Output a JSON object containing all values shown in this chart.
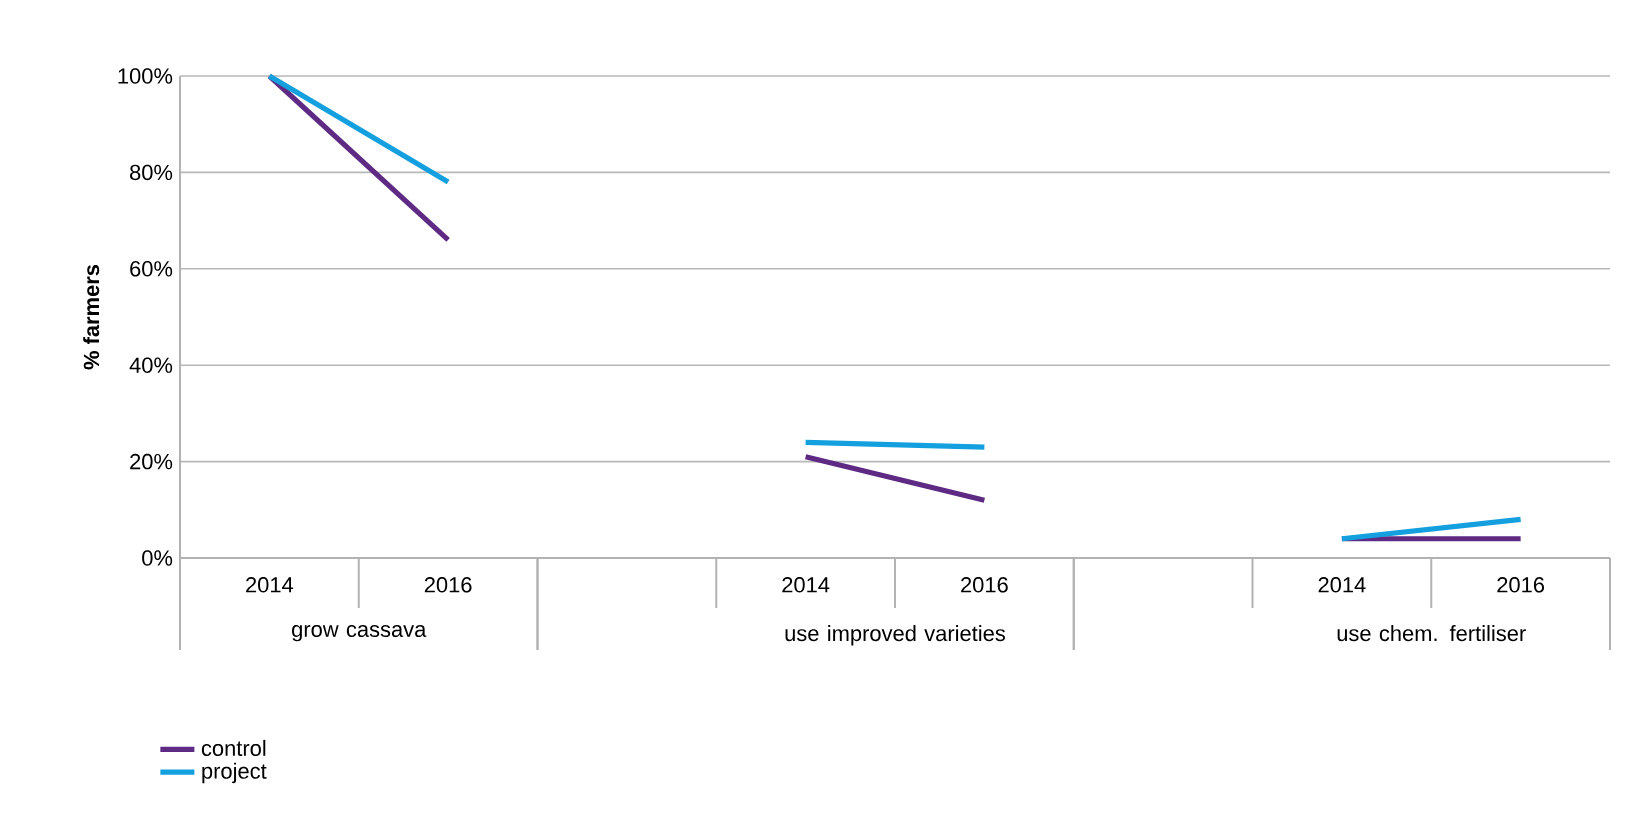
{
  "chart_data": {
    "type": "line",
    "ylabel": "% farmers",
    "categories": [
      "2014",
      "2016",
      null,
      "2014",
      "2016",
      null,
      "2014",
      "2016"
    ],
    "series": [
      {
        "name": "control",
        "color": "#5e2a84",
        "values": [
          100,
          66,
          null,
          21,
          12,
          null,
          4,
          4
        ]
      },
      {
        "name": "project",
        "color": "#14a0de",
        "values": [
          100,
          78,
          null,
          24,
          23,
          null,
          4,
          8
        ]
      }
    ],
    "annotations": [
      "grow cassava",
      "use improved varieties",
      "use chem. fertiliser"
    ],
    "ylim": [
      0,
      100
    ],
    "yticks": [
      {
        "value": 0,
        "label": "0%"
      },
      {
        "value": 20,
        "label": "20%"
      },
      {
        "value": 40,
        "label": "40%"
      },
      {
        "value": 60,
        "label": "60%"
      },
      {
        "value": 80,
        "label": "80%"
      },
      {
        "value": 100,
        "label": "100%"
      }
    ],
    "grid": "y",
    "legend": "bottom left",
    "marker": "none",
    "line_style": "solid"
  }
}
